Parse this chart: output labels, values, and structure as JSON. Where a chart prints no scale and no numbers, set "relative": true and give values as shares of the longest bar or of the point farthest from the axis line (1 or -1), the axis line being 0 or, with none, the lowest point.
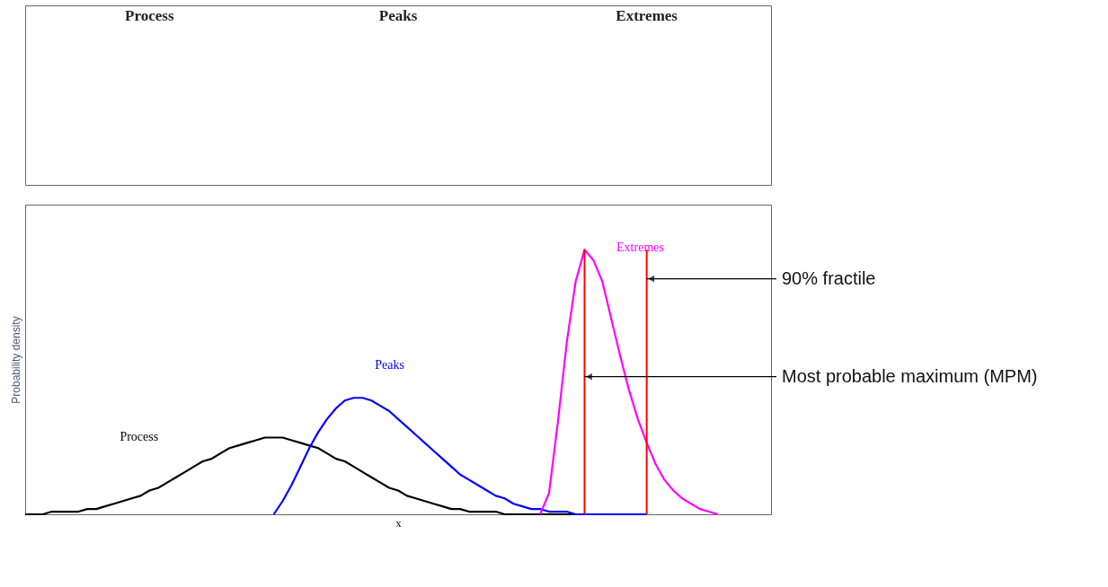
{
  "chart_data": {
    "type": "line",
    "relative": true,
    "xlabel": "x",
    "ylabel": "Probability density",
    "categories": [
      null,
      null,
      null,
      null,
      null,
      null,
      null,
      null,
      null,
      null,
      null,
      null,
      null,
      null,
      null,
      null,
      null,
      null,
      null,
      null,
      null,
      null,
      null,
      null,
      null,
      null,
      null,
      null,
      null,
      null,
      null,
      null,
      null,
      null,
      null,
      null,
      null,
      null,
      null,
      null,
      null,
      null,
      null,
      null,
      null,
      null,
      null,
      null,
      null,
      null,
      null,
      null,
      null,
      null,
      null,
      null,
      null,
      null,
      null,
      null,
      null,
      null,
      null,
      null,
      null,
      null,
      null,
      null,
      null,
      null,
      null,
      null,
      null,
      null,
      null,
      null,
      null,
      null,
      null,
      null,
      null,
      null,
      null,
      null,
      null
    ],
    "series": [
      {
        "name": "Process",
        "color": "#000000",
        "values": [
          0.0,
          0.0,
          0.0,
          0.01,
          0.01,
          0.01,
          0.01,
          0.02,
          0.02,
          0.03,
          0.04,
          0.05,
          0.06,
          0.07,
          0.09,
          0.1,
          0.12,
          0.14,
          0.16,
          0.18,
          0.2,
          0.21,
          0.23,
          0.25,
          0.26,
          0.27,
          0.28,
          0.29,
          0.29,
          0.29,
          0.28,
          0.27,
          0.26,
          0.25,
          0.23,
          0.21,
          0.2,
          0.18,
          0.16,
          0.14,
          0.12,
          0.1,
          0.09,
          0.07,
          0.06,
          0.05,
          0.04,
          0.03,
          0.02,
          0.02,
          0.01,
          0.01,
          0.01,
          0.01,
          0.0,
          0.0,
          0.0,
          0.0,
          0.0,
          0.0,
          0.0,
          0.0,
          0.0,
          0.0,
          null,
          null,
          null,
          null,
          null,
          null,
          null,
          null,
          null,
          null,
          null,
          null,
          null,
          null,
          null,
          null,
          null,
          null,
          null,
          null,
          null
        ]
      },
      {
        "name": "Peaks",
        "color": "#0000ff",
        "values": [
          null,
          null,
          null,
          null,
          null,
          null,
          null,
          null,
          null,
          null,
          null,
          null,
          null,
          null,
          null,
          null,
          null,
          null,
          null,
          null,
          null,
          null,
          null,
          null,
          null,
          null,
          null,
          null,
          0.0,
          0.05,
          0.11,
          0.18,
          0.25,
          0.31,
          0.36,
          0.4,
          0.43,
          0.44,
          0.44,
          0.43,
          0.41,
          0.39,
          0.36,
          0.33,
          0.3,
          0.27,
          0.24,
          0.21,
          0.18,
          0.15,
          0.13,
          0.11,
          0.09,
          0.07,
          0.06,
          0.04,
          0.03,
          0.02,
          0.02,
          0.01,
          0.01,
          0.01,
          0.0,
          0.0,
          0.0,
          0.0,
          0.0,
          0.0,
          0.0,
          0.0,
          0.0,
          null,
          null,
          null,
          null,
          null,
          null,
          null,
          null,
          null,
          null,
          null,
          null,
          null,
          null
        ]
      },
      {
        "name": "Extremes",
        "color": "#ff00ff",
        "values": [
          null,
          null,
          null,
          null,
          null,
          null,
          null,
          null,
          null,
          null,
          null,
          null,
          null,
          null,
          null,
          null,
          null,
          null,
          null,
          null,
          null,
          null,
          null,
          null,
          null,
          null,
          null,
          null,
          null,
          null,
          null,
          null,
          null,
          null,
          null,
          null,
          null,
          null,
          null,
          null,
          null,
          null,
          null,
          null,
          null,
          null,
          null,
          null,
          null,
          null,
          null,
          null,
          null,
          null,
          null,
          null,
          null,
          null,
          0.0,
          0.08,
          0.35,
          0.65,
          0.88,
          1.0,
          0.96,
          0.88,
          0.74,
          0.6,
          0.47,
          0.36,
          0.27,
          0.19,
          0.13,
          0.09,
          0.06,
          0.04,
          0.02,
          0.01,
          0.0,
          null,
          null,
          null,
          null,
          null,
          null
        ]
      }
    ],
    "annotations": [
      "Process",
      "Peaks",
      "Extremes",
      "90% fractile",
      "Most probable maximum (MPM)"
    ],
    "grid": false,
    "legend": false,
    "tick_labels": false
  }
}
